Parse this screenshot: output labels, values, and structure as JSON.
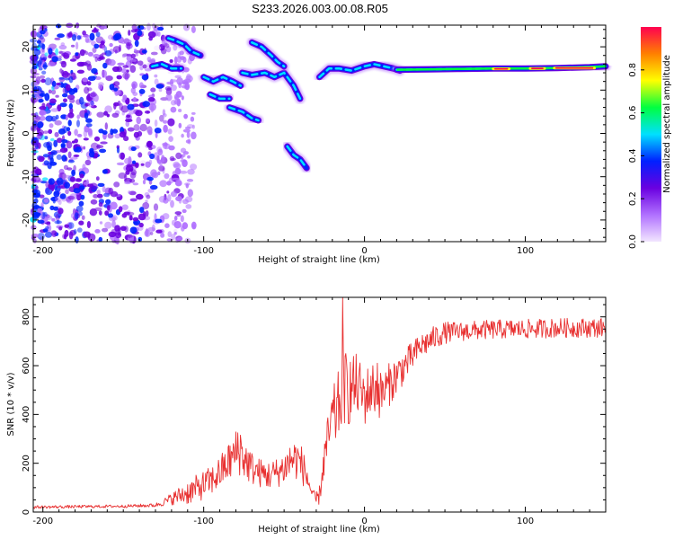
{
  "title": "S233.2026.003.00.08.R05",
  "chart_data": [
    {
      "type": "heatmap",
      "xlabel": "Height of straight line (km)",
      "ylabel": "Frequency (Hz)",
      "xlim": [
        -206,
        150
      ],
      "ylim": [
        -25,
        25
      ],
      "xticks": [
        -200,
        -100,
        0,
        100
      ],
      "yticks": [
        -20,
        -10,
        0,
        10,
        20
      ],
      "colorbar": {
        "label": "Normalized spectral amplitude",
        "range": [
          0,
          1
        ],
        "ticks": [
          "0.0",
          "0.2",
          "0.4",
          "0.6",
          "0.8"
        ],
        "colors": [
          "#f2e6ff",
          "#b070ff",
          "#6a00e0",
          "#0020ff",
          "#00e0ff",
          "#00ff40",
          "#ffff00",
          "#ff8000",
          "#ff0050"
        ]
      },
      "ridges": [
        {
          "x": [
            -122,
            -118,
            -112,
            -108,
            -102
          ],
          "y": [
            22,
            21.5,
            20.5,
            19,
            18
          ]
        },
        {
          "x": [
            -132,
            -126,
            -120,
            -114
          ],
          "y": [
            15.5,
            16,
            15,
            15
          ]
        },
        {
          "x": [
            -100,
            -94,
            -88,
            -82,
            -77
          ],
          "y": [
            13,
            12,
            13,
            12,
            11
          ]
        },
        {
          "x": [
            -96,
            -90,
            -84
          ],
          "y": [
            9,
            8,
            8
          ]
        },
        {
          "x": [
            -76,
            -70,
            -62,
            -56,
            -50,
            -44,
            -40
          ],
          "y": [
            14,
            13.5,
            14,
            13,
            14,
            11,
            8
          ]
        },
        {
          "x": [
            -70,
            -64,
            -58,
            -54,
            -50
          ],
          "y": [
            21,
            20,
            18,
            16.5,
            15.5
          ]
        },
        {
          "x": [
            -84,
            -76,
            -70,
            -66
          ],
          "y": [
            6,
            5,
            3.5,
            3
          ]
        },
        {
          "x": [
            -48,
            -44,
            -40,
            -38,
            -36
          ],
          "y": [
            -3,
            -5,
            -6,
            -7,
            -8
          ]
        },
        {
          "x": [
            -28,
            -22,
            -16,
            -8,
            0,
            6,
            12,
            18,
            22
          ],
          "y": [
            13,
            15,
            15,
            14.5,
            15.5,
            16,
            15.5,
            15,
            14.5
          ]
        },
        {
          "x": [
            20,
            40,
            60,
            80,
            100,
            120,
            140,
            150
          ],
          "y": [
            14.7,
            14.8,
            14.9,
            15,
            15,
            15.1,
            15.3,
            15.5
          ]
        }
      ],
      "band_peaks": [
        {
          "x": [
            80,
            90
          ],
          "y": 14.9
        },
        {
          "x": [
            103,
            112
          ],
          "y": 15
        },
        {
          "x": [
            118,
            143
          ],
          "y": 15.1
        }
      ]
    },
    {
      "type": "line",
      "xlabel": "Height of straight line (km)",
      "ylabel": "SNR (10 * v/v)",
      "xlim": [
        -206,
        150
      ],
      "ylim": [
        0,
        880
      ],
      "xticks": [
        -200,
        -100,
        0,
        100
      ],
      "yticks": [
        0,
        200,
        400,
        600,
        800
      ],
      "series": [
        {
          "color": "#e83030",
          "x": [
            -206,
            -180,
            -150,
            -130,
            -125,
            -118,
            -110,
            -100,
            -95,
            -90,
            -85,
            -80,
            -78,
            -75,
            -70,
            -65,
            -60,
            -55,
            -50,
            -45,
            -40,
            -35,
            -32,
            -30,
            -28,
            -25,
            -22,
            -20,
            -18,
            -15,
            -13,
            -10,
            -5,
            0,
            5,
            10,
            15,
            20,
            25,
            30,
            35,
            40,
            45,
            50,
            60,
            70,
            80,
            90,
            100,
            110,
            120,
            130,
            140,
            150
          ],
          "y": [
            20,
            22,
            24,
            28,
            40,
            60,
            80,
            110,
            130,
            160,
            200,
            240,
            270,
            220,
            180,
            160,
            150,
            160,
            180,
            220,
            210,
            130,
            60,
            50,
            70,
            220,
            320,
            380,
            400,
            460,
            520,
            500,
            520,
            470,
            510,
            480,
            520,
            560,
            600,
            640,
            680,
            700,
            720,
            735,
            740,
            745,
            748,
            750,
            750,
            752,
            755,
            755,
            755,
            756
          ],
          "amp": [
            6,
            6,
            6,
            8,
            15,
            30,
            50,
            60,
            60,
            70,
            80,
            100,
            120,
            90,
            70,
            60,
            60,
            60,
            70,
            90,
            80,
            60,
            30,
            30,
            40,
            80,
            110,
            130,
            140,
            150,
            160,
            150,
            130,
            120,
            110,
            100,
            90,
            80,
            70,
            60,
            55,
            50,
            50,
            45,
            40,
            40,
            40,
            40,
            40,
            40,
            40,
            40,
            40,
            40
          ]
        }
      ],
      "spikes": [
        {
          "x": -13.5,
          "y": 880
        },
        {
          "x": -17,
          "y": 470
        },
        {
          "x": 8,
          "y": 610
        }
      ]
    }
  ]
}
